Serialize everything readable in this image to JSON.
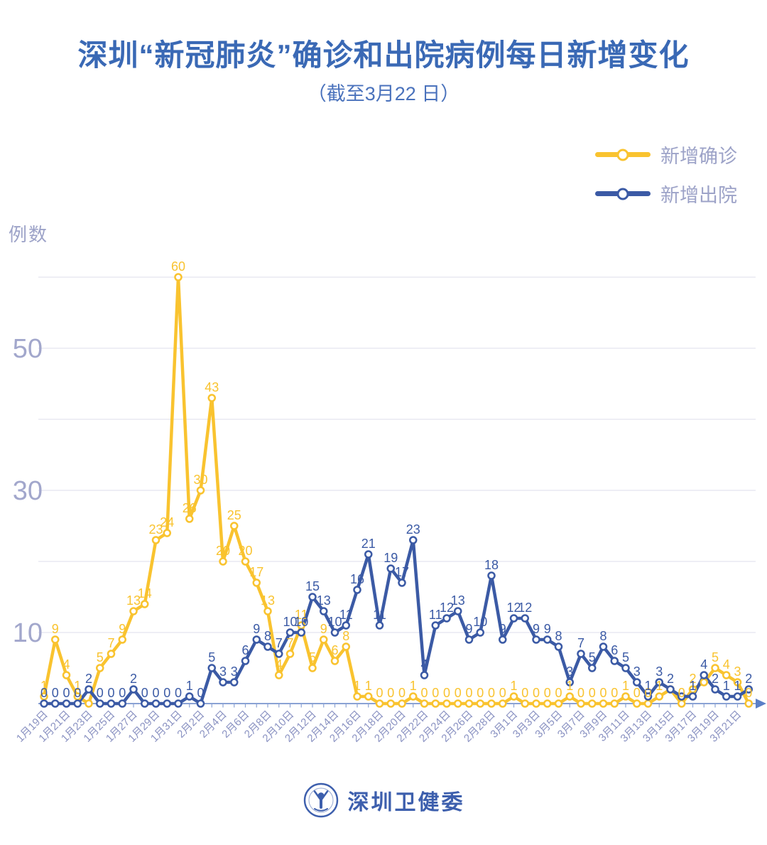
{
  "header": {
    "title": "深圳“新冠肺炎”确诊和出院病例每日新增变化",
    "subtitle": "（截至3月22 日）",
    "title_color": "#3a69b5"
  },
  "legend": {
    "items": [
      {
        "label": "新增确诊",
        "color": "#f9c32f"
      },
      {
        "label": "新增出院",
        "color": "#3b5aa5"
      }
    ]
  },
  "footer": {
    "brand": "深圳卫健委",
    "color": "#3d5fad",
    "logo": "shenzhen-health-commission-seal"
  },
  "chart_data": {
    "type": "line",
    "title": "深圳“新冠肺炎”确诊和出院病例每日新增变化",
    "subtitle": "（截至3月22 日）",
    "ylabel": "例数",
    "ylim": [
      0,
      62
    ],
    "y_ticks": [
      10,
      30,
      50
    ],
    "grid_levels": [
      10,
      20,
      30,
      40,
      50,
      60
    ],
    "x_label_every": 2,
    "legend_position": "top-right",
    "categories": [
      "1月19日",
      "1月20日",
      "1月21日",
      "1月22日",
      "1月23日",
      "1月24日",
      "1月25日",
      "1月26日",
      "1月27日",
      "1月28日",
      "1月29日",
      "1月30日",
      "1月31日",
      "2月1日",
      "2月2日",
      "2月3日",
      "2月4日",
      "2月5日",
      "2月6日",
      "2月7日",
      "2月8日",
      "2月9日",
      "2月10日",
      "2月11日",
      "2月12日",
      "2月13日",
      "2月14日",
      "2月15日",
      "2月16日",
      "2月17日",
      "2月18日",
      "2月19日",
      "2月20日",
      "2月21日",
      "2月22日",
      "2月23日",
      "2月24日",
      "2月25日",
      "2月26日",
      "2月27日",
      "2月28日",
      "2月29日",
      "3月1日",
      "3月2日",
      "3月3日",
      "3月4日",
      "3月5日",
      "3月6日",
      "3月7日",
      "3月8日",
      "3月9日",
      "3月10日",
      "3月11日",
      "3月12日",
      "3月13日",
      "3月14日",
      "3月15日",
      "3月16日",
      "3月17日",
      "3月18日",
      "3月19日",
      "3月20日",
      "3月21日",
      "3月22日"
    ],
    "series": [
      {
        "name": "新增确诊",
        "color": "#f9c32f",
        "values": [
          1,
          9,
          4,
          1,
          0,
          5,
          7,
          9,
          13,
          14,
          23,
          24,
          60,
          26,
          30,
          43,
          20,
          25,
          20,
          17,
          13,
          4,
          7,
          11,
          5,
          9,
          6,
          8,
          1,
          1,
          0,
          0,
          0,
          1,
          0,
          0,
          0,
          0,
          0,
          0,
          0,
          0,
          1,
          0,
          0,
          0,
          0,
          1,
          0,
          0,
          0,
          0,
          1,
          0,
          0,
          1,
          2,
          0,
          2,
          3,
          5,
          4,
          3,
          0
        ],
        "hide_label_idx": [
          4,
          56,
          59
        ]
      },
      {
        "name": "新增出院",
        "color": "#3b5aa5",
        "values": [
          0,
          0,
          0,
          0,
          2,
          0,
          0,
          0,
          2,
          0,
          0,
          0,
          0,
          1,
          0,
          5,
          3,
          3,
          6,
          9,
          8,
          7,
          10,
          10,
          15,
          13,
          10,
          11,
          16,
          21,
          11,
          19,
          17,
          23,
          4,
          11,
          12,
          13,
          9,
          10,
          18,
          9,
          12,
          12,
          9,
          9,
          8,
          3,
          7,
          5,
          8,
          6,
          5,
          3,
          1,
          3,
          2,
          1,
          1,
          4,
          2,
          1,
          1,
          2
        ],
        "hide_label_idx": [
          57
        ]
      }
    ],
    "style": {
      "grid_color": "#e9e9f2",
      "axis_color": "#8aa2d4",
      "arrow_color": "#5b7fc7",
      "date_label_color": "#8a92c2",
      "y_tick_color": "#a2a7cc"
    }
  }
}
